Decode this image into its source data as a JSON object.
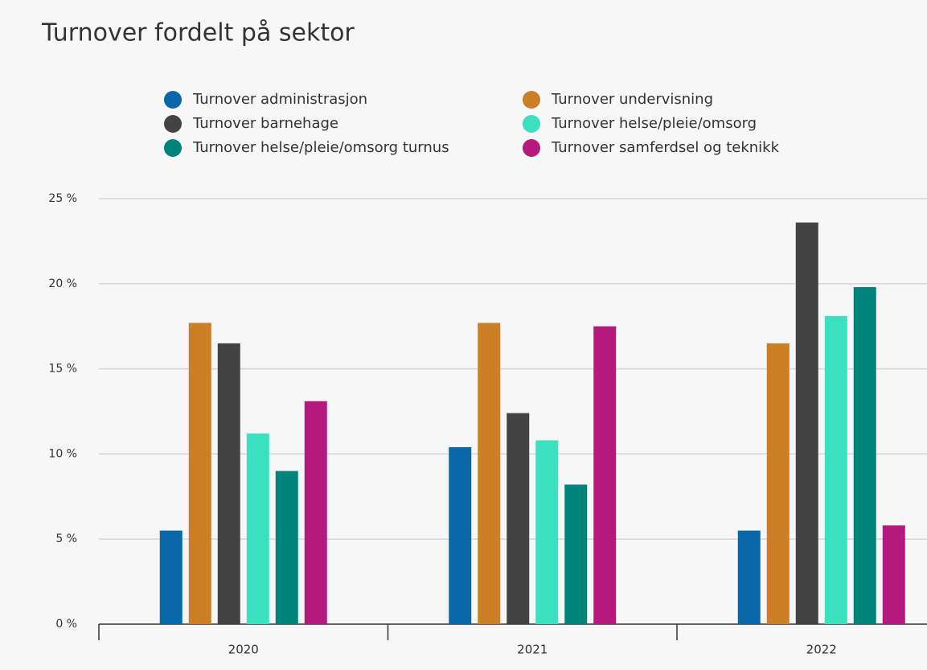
{
  "chart_data": {
    "type": "bar",
    "title": "Turnover fordelt på sektor",
    "categories": [
      "2020",
      "2021",
      "2022"
    ],
    "series": [
      {
        "name": "Turnover administrasjon",
        "color": "#0b68a8",
        "values": [
          5.5,
          10.4,
          5.5
        ]
      },
      {
        "name": "Turnover undervisning",
        "color": "#cc7f27",
        "values": [
          17.7,
          17.7,
          16.5
        ]
      },
      {
        "name": "Turnover barnehage",
        "color": "#434343",
        "values": [
          16.5,
          12.4,
          23.6
        ]
      },
      {
        "name": "Turnover helse/pleie/omsorg",
        "color": "#3ae0c0",
        "values": [
          11.2,
          10.8,
          18.1
        ]
      },
      {
        "name": "Turnover helse/pleie/omsorg turnus",
        "color": "#00837b",
        "values": [
          9.0,
          8.2,
          19.8
        ]
      },
      {
        "name": "Turnover samferdsel og teknikk",
        "color": "#b5197c",
        "values": [
          13.1,
          17.5,
          5.8
        ]
      }
    ],
    "ylim": [
      0,
      25
    ],
    "yticks": [
      {
        "value": 0,
        "label": "0 %"
      },
      {
        "value": 5,
        "label": "5 %"
      },
      {
        "value": 10,
        "label": "10 %"
      },
      {
        "value": 15,
        "label": "15 %"
      },
      {
        "value": 20,
        "label": "20 %"
      },
      {
        "value": 25,
        "label": "25 %"
      }
    ],
    "grid": true,
    "legend": "top"
  }
}
